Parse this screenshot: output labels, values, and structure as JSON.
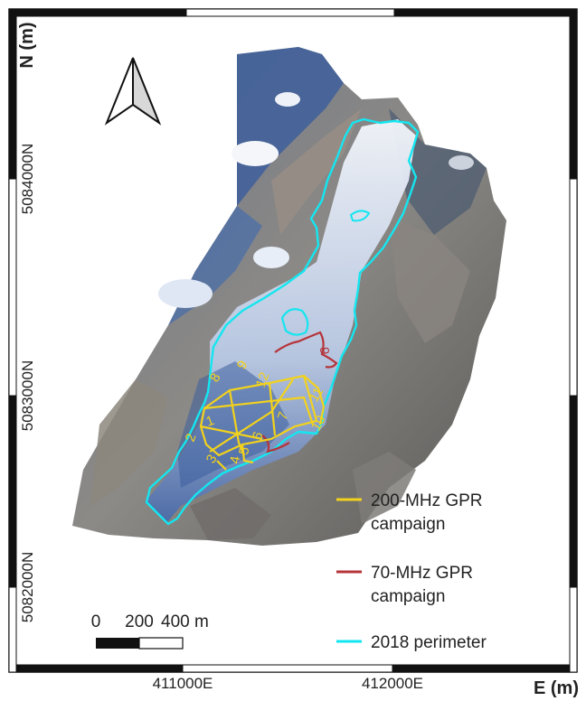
{
  "axes": {
    "y_title": "N (m)",
    "x_title": "E (m)",
    "y_ticks": [
      "5084000N",
      "5083000N",
      "5082000N"
    ],
    "x_ticks": [
      "411000E",
      "412000E"
    ]
  },
  "scale_bar": {
    "labels": [
      "0",
      "200",
      "400 m"
    ]
  },
  "legend": [
    {
      "label_line1": "200-MHz GPR",
      "label_line2": "campaign",
      "color": "#f2d21c"
    },
    {
      "label_line1": "70-MHz GPR",
      "label_line2": "campaign",
      "color": "#b5343a"
    },
    {
      "label_line1": "2018 perimeter",
      "label_line2": "",
      "color": "#14e6f0"
    }
  ],
  "line_numbers_200mhz": [
    "1",
    "2",
    "3",
    "4",
    "5",
    "6",
    "7",
    "8",
    "9",
    "10",
    "11",
    "12"
  ],
  "line_numbers_70mhz": [
    "9"
  ],
  "colors": {
    "gpr200": "#f2d21c",
    "gpr70": "#b5343a",
    "perimeter": "#14e6f0",
    "frame": "#111111"
  }
}
